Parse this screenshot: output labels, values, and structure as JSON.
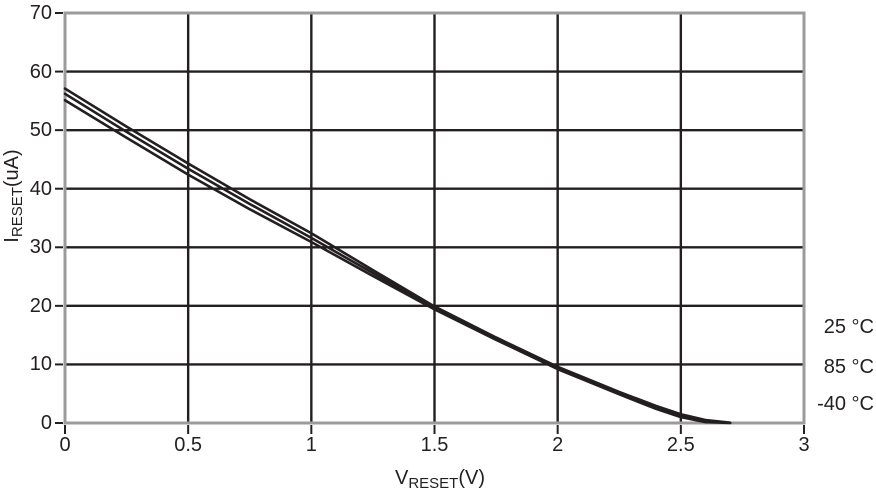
{
  "chart_data": {
    "type": "line",
    "title": "",
    "xlabel": {
      "base": "V",
      "sub": "RESET",
      "unit": "(V)"
    },
    "ylabel": {
      "base": "I",
      "sub": "RESET",
      "unit": "(uA)"
    },
    "xlim": [
      0,
      3
    ],
    "ylim": [
      0,
      70
    ],
    "xticks": [
      0,
      0.5,
      1,
      1.5,
      2,
      2.5,
      3
    ],
    "xtick_labels": [
      "0",
      "0.5",
      "1",
      "1.5",
      "2",
      "2.5",
      "3"
    ],
    "yticks": [
      0,
      10,
      20,
      30,
      40,
      50,
      60,
      70
    ],
    "ytick_labels": [
      "0",
      "10",
      "20",
      "30",
      "40",
      "50",
      "60",
      "70"
    ],
    "grid": true,
    "legend_position": "right-outside",
    "x": [
      0,
      0.25,
      0.5,
      0.75,
      1,
      1.25,
      1.5,
      1.75,
      2,
      2.25,
      2.4,
      2.5,
      2.6,
      2.7
    ],
    "series": [
      {
        "name": "25 °C",
        "values": [
          57.1,
          50.6,
          44.3,
          38.2,
          32.4,
          26.1,
          19.9,
          14.6,
          9.6,
          5.3,
          2.9,
          1.5,
          0.5,
          0.05
        ]
      },
      {
        "name": "85 °C",
        "values": [
          56.2,
          49.7,
          43.4,
          37.4,
          31.6,
          25.6,
          19.7,
          14.4,
          9.4,
          5.1,
          2.7,
          1.2,
          0.3,
          0.02
        ]
      },
      {
        "name": "-40 °C",
        "values": [
          55.1,
          48.7,
          42.4,
          36.5,
          30.9,
          25.1,
          19.4,
          14.2,
          9.2,
          4.9,
          2.4,
          1.0,
          0.15,
          0
        ]
      }
    ],
    "colors": {
      "curve": "#231f20",
      "grid": "#231f20",
      "tick": "#231f20",
      "frame": "#9b9b9b",
      "text": "#231f20",
      "background": "#ffffff"
    }
  }
}
